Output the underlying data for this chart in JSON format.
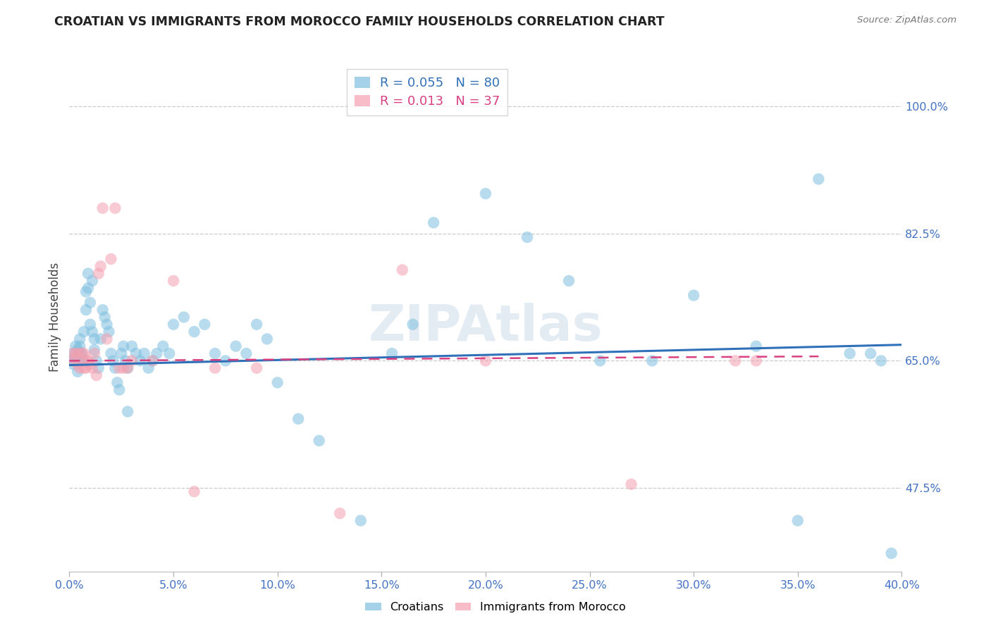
{
  "title": "CROATIAN VS IMMIGRANTS FROM MOROCCO FAMILY HOUSEHOLDS CORRELATION CHART",
  "source": "Source: ZipAtlas.com",
  "ylabel": "Family Households",
  "blue_label": "Croatians",
  "pink_label": "Immigrants from Morocco",
  "blue_R": 0.055,
  "blue_N": 80,
  "pink_R": 0.013,
  "pink_N": 37,
  "xlim": [
    0.0,
    0.4
  ],
  "ylim": [
    0.36,
    1.06
  ],
  "blue_color": "#7fbfdf",
  "pink_color": "#f4a0b0",
  "blue_line_color": "#3070b8",
  "pink_line_color": "#d84080",
  "axis_color": "#4472C4",
  "grid_color": "#cccccc",
  "background_color": "#ffffff",
  "blue_x": [
    0.001,
    0.002,
    0.002,
    0.003,
    0.003,
    0.004,
    0.004,
    0.005,
    0.005,
    0.005,
    0.006,
    0.006,
    0.007,
    0.007,
    0.008,
    0.008,
    0.009,
    0.009,
    0.01,
    0.01,
    0.011,
    0.011,
    0.012,
    0.012,
    0.013,
    0.014,
    0.015,
    0.016,
    0.017,
    0.018,
    0.019,
    0.02,
    0.021,
    0.022,
    0.023,
    0.024,
    0.025,
    0.026,
    0.027,
    0.028,
    0.028,
    0.03,
    0.032,
    0.034,
    0.036,
    0.038,
    0.04,
    0.042,
    0.045,
    0.048,
    0.05,
    0.055,
    0.06,
    0.065,
    0.07,
    0.075,
    0.08,
    0.085,
    0.09,
    0.095,
    0.1,
    0.11,
    0.12,
    0.14,
    0.155,
    0.165,
    0.175,
    0.2,
    0.22,
    0.24,
    0.255,
    0.28,
    0.3,
    0.33,
    0.35,
    0.36,
    0.375,
    0.385,
    0.39,
    0.395
  ],
  "blue_y": [
    0.65,
    0.66,
    0.645,
    0.67,
    0.655,
    0.665,
    0.635,
    0.66,
    0.67,
    0.68,
    0.65,
    0.66,
    0.69,
    0.65,
    0.72,
    0.745,
    0.77,
    0.75,
    0.73,
    0.7,
    0.76,
    0.69,
    0.68,
    0.665,
    0.65,
    0.64,
    0.68,
    0.72,
    0.71,
    0.7,
    0.69,
    0.66,
    0.65,
    0.64,
    0.62,
    0.61,
    0.66,
    0.67,
    0.65,
    0.64,
    0.58,
    0.67,
    0.66,
    0.65,
    0.66,
    0.64,
    0.65,
    0.66,
    0.67,
    0.66,
    0.7,
    0.71,
    0.69,
    0.7,
    0.66,
    0.65,
    0.67,
    0.66,
    0.7,
    0.68,
    0.62,
    0.57,
    0.54,
    0.43,
    0.66,
    0.7,
    0.84,
    0.88,
    0.82,
    0.76,
    0.65,
    0.65,
    0.74,
    0.67,
    0.43,
    0.9,
    0.66,
    0.66,
    0.65,
    0.385
  ],
  "pink_x": [
    0.001,
    0.002,
    0.003,
    0.004,
    0.004,
    0.005,
    0.006,
    0.007,
    0.007,
    0.008,
    0.008,
    0.009,
    0.01,
    0.011,
    0.012,
    0.013,
    0.014,
    0.015,
    0.016,
    0.018,
    0.02,
    0.022,
    0.024,
    0.026,
    0.028,
    0.03,
    0.04,
    0.05,
    0.06,
    0.07,
    0.09,
    0.13,
    0.16,
    0.2,
    0.27,
    0.32,
    0.33
  ],
  "pink_y": [
    0.66,
    0.65,
    0.66,
    0.66,
    0.645,
    0.64,
    0.66,
    0.66,
    0.64,
    0.65,
    0.64,
    0.65,
    0.645,
    0.64,
    0.66,
    0.63,
    0.77,
    0.78,
    0.86,
    0.68,
    0.79,
    0.86,
    0.64,
    0.64,
    0.64,
    0.65,
    0.65,
    0.76,
    0.47,
    0.64,
    0.64,
    0.44,
    0.775,
    0.65,
    0.48,
    0.65,
    0.65
  ],
  "blue_trend_x": [
    0.0,
    0.4
  ],
  "blue_trend_y": [
    0.644,
    0.672
  ],
  "pink_trend_x": [
    0.0,
    0.36
  ],
  "pink_trend_y": [
    0.65,
    0.656
  ],
  "watermark": "ZIPAtlas"
}
